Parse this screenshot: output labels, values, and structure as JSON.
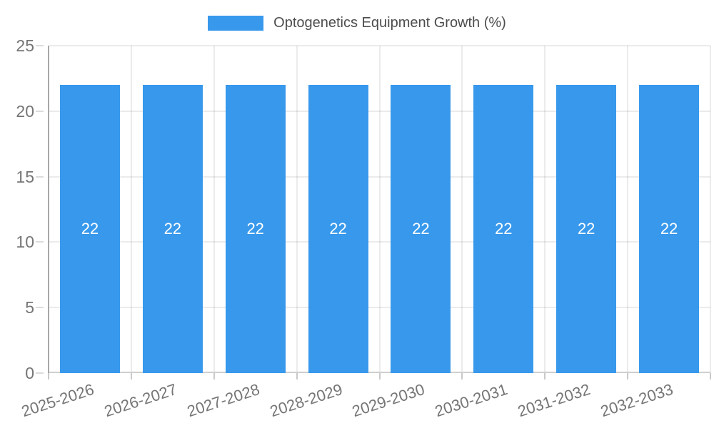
{
  "chart_data": {
    "type": "bar",
    "title": "Optogenetics Equipment Growth (%)",
    "legend": {
      "label": "Optogenetics Equipment Growth (%)",
      "position": "top",
      "swatch_color": "#3899EC"
    },
    "categories": [
      "2025-2026",
      "2026-2027",
      "2027-2028",
      "2028-2029",
      "2029-2030",
      "2030-2031",
      "2031-2032",
      "2032-2033"
    ],
    "values": [
      22,
      22,
      22,
      22,
      22,
      22,
      22,
      22
    ],
    "bar_labels": [
      "22",
      "22",
      "22",
      "22",
      "22",
      "22",
      "22",
      "22"
    ],
    "xlabel": "",
    "ylabel": "",
    "ylim": [
      0,
      25
    ],
    "yticks": [
      0,
      5,
      10,
      15,
      20,
      25
    ],
    "grid": true,
    "bar_color": "#3899EC",
    "bar_label_color": "#FFFFFF",
    "axis_tick_color": "#757575",
    "legend_text_color": "#4D4D4D",
    "gridline_color": "rgba(0,0,0,0.08)"
  }
}
